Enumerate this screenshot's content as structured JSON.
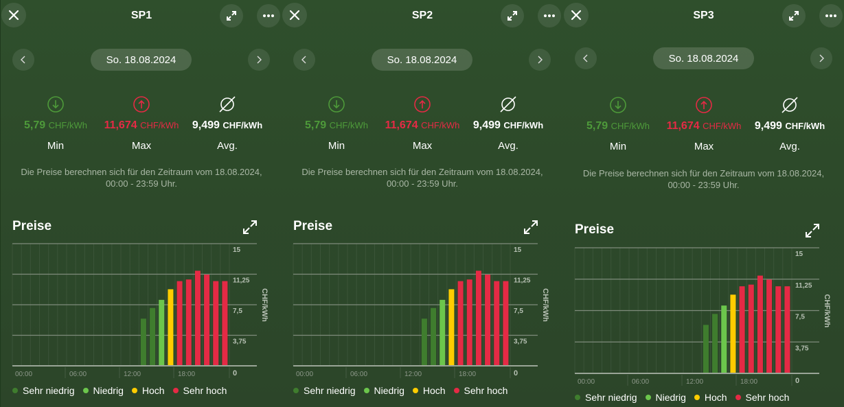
{
  "panels": [
    {
      "title": "SP1",
      "date": "So. 18.08.2024"
    },
    {
      "title": "SP2",
      "date": "So. 18.08.2024"
    },
    {
      "title": "SP3",
      "date": "So. 18.08.2024"
    }
  ],
  "stats": {
    "min": {
      "value": "5,79",
      "unit": "CHF/kWh",
      "label": "Min",
      "color": "#4e9a3a"
    },
    "max": {
      "value": "11,674",
      "unit": "CHF/kWh",
      "label": "Max",
      "color": "#e52a45"
    },
    "avg": {
      "value": "9,499",
      "unit": "CHF/kWh",
      "label": "Avg.",
      "color": "#ffffff"
    }
  },
  "description": {
    "line1": "Die Preise berechnen sich für den Zeitraum vom 18.08.2024,",
    "line2": "00:00 - 23:59 Uhr."
  },
  "section_title": "Preise",
  "legend": [
    {
      "label": "Sehr niedrig",
      "color": "#3f7d2e"
    },
    {
      "label": "Niedrig",
      "color": "#6cc64c"
    },
    {
      "label": "Hoch",
      "color": "#ffcc00"
    },
    {
      "label": "Sehr hoch",
      "color": "#e52a45"
    }
  ],
  "icons": {
    "close": "close-icon",
    "expand": "expand-icon",
    "more": "more-icon",
    "prev": "chevron-left-icon",
    "next": "chevron-right-icon",
    "min": "arrow-down-circle-icon",
    "max": "arrow-up-circle-icon",
    "avg": "average-icon"
  },
  "chart_data": {
    "type": "bar",
    "ylabel": "CHF/kWh",
    "ylim": [
      0,
      15
    ],
    "yticks": [
      "0",
      "3,75",
      "7,5",
      "11,25",
      "15"
    ],
    "ytick_values": [
      0,
      3.75,
      7.5,
      11.25,
      15
    ],
    "xlim": [
      0,
      24
    ],
    "xticks": [
      "00:00",
      "06:00",
      "12:00",
      "18:00"
    ],
    "xtick_values": [
      0,
      6,
      12,
      18
    ],
    "hours": [
      14,
      15,
      16,
      17,
      18,
      19,
      20,
      21,
      22,
      23
    ],
    "values": [
      5.79,
      7.1,
      8.1,
      9.4,
      10.4,
      10.6,
      11.674,
      11.2,
      10.4,
      10.4
    ],
    "categories": [
      0,
      0,
      1,
      2,
      3,
      3,
      3,
      3,
      3,
      3
    ]
  }
}
